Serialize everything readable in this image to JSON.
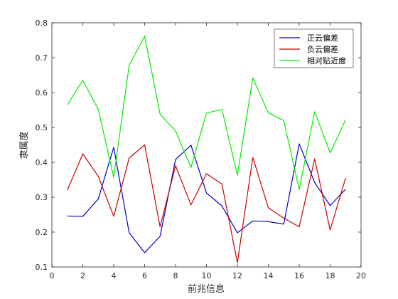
{
  "chart_data": {
    "type": "line",
    "xlabel": "前兆信息",
    "ylabel": "隶属度",
    "xlim": [
      0,
      20
    ],
    "ylim": [
      0.1,
      0.8
    ],
    "xticks": [
      0,
      2,
      4,
      6,
      8,
      10,
      12,
      14,
      16,
      18,
      20
    ],
    "yticks": [
      0.1,
      0.2,
      0.3,
      0.4,
      0.5,
      0.6,
      0.7,
      0.8
    ],
    "xtick_labels": [
      "0",
      "2",
      "4",
      "6",
      "8",
      "10",
      "12",
      "14",
      "16",
      "18",
      "20"
    ],
    "ytick_labels": [
      "0.1",
      "0.2",
      "0.3",
      "0.4",
      "0.5",
      "0.6",
      "0.7",
      "0.8"
    ],
    "grid": false,
    "legend_position": "top-right",
    "x": [
      1,
      2,
      3,
      4,
      5,
      6,
      7,
      8,
      9,
      10,
      11,
      12,
      13,
      14,
      15,
      16,
      17,
      18,
      19
    ],
    "series": [
      {
        "name": "正云偏差",
        "color": "#0000cc",
        "values": [
          0.246,
          0.245,
          0.295,
          0.443,
          0.198,
          0.141,
          0.188,
          0.408,
          0.449,
          0.312,
          0.275,
          0.198,
          0.232,
          0.23,
          0.223,
          0.453,
          0.342,
          0.276,
          0.323
        ]
      },
      {
        "name": "负云偏差",
        "color": "#cc0000",
        "values": [
          0.32,
          0.424,
          0.36,
          0.245,
          0.412,
          0.45,
          0.215,
          0.39,
          0.278,
          0.367,
          0.338,
          0.112,
          0.414,
          0.27,
          0.24,
          0.215,
          0.41,
          0.206,
          0.355
        ]
      },
      {
        "name": "相对贴近度",
        "color": "#00ee00",
        "values": [
          0.565,
          0.635,
          0.552,
          0.357,
          0.678,
          0.762,
          0.538,
          0.49,
          0.385,
          0.541,
          0.552,
          0.363,
          0.642,
          0.542,
          0.52,
          0.322,
          0.545,
          0.427,
          0.522
        ]
      }
    ]
  }
}
